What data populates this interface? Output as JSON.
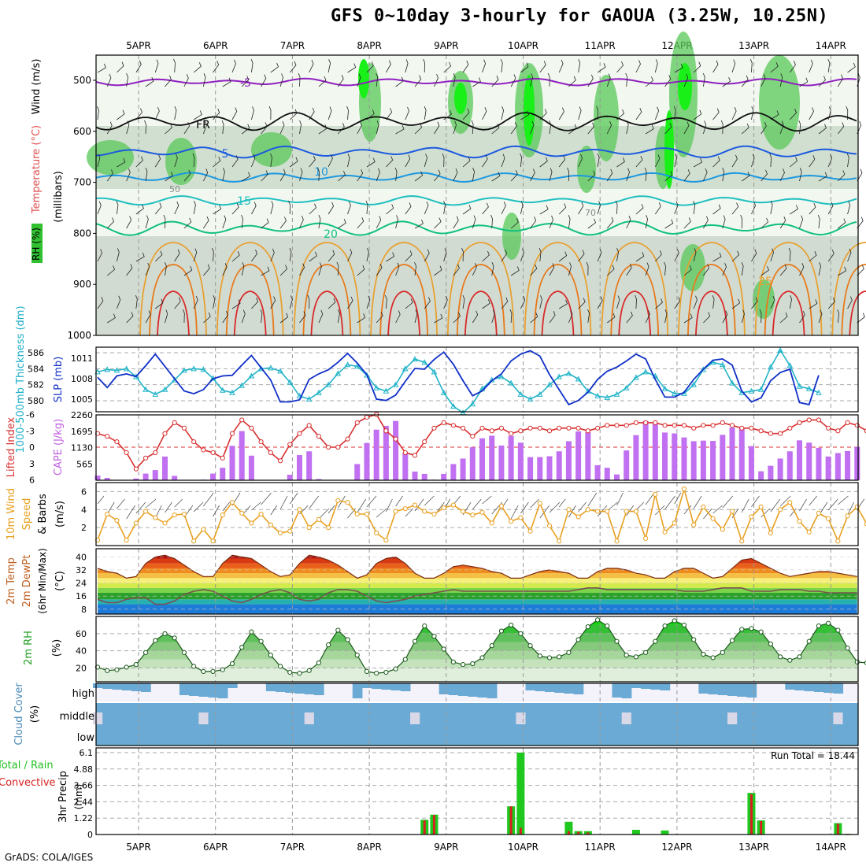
{
  "title": "GFS 0~10day 3-hourly for GAOUA (3.25W, 10.25N)",
  "footer": "GrADS: COLA/IGES",
  "days": [
    "5APR",
    "6APR",
    "7APR",
    "8APR",
    "9APR",
    "10APR",
    "11APR",
    "12APR",
    "13APR",
    "14APR"
  ],
  "chart_data": [
    {
      "type": "heatmap",
      "panel": "upper-air",
      "ylabel": [
        "RH (%)",
        "Temperature (°C)",
        "Wind (m/s)"
      ],
      "yunit": "(millibars)",
      "yticks": [
        500,
        600,
        700,
        800,
        900,
        1000
      ],
      "ylim": [
        1000,
        450
      ],
      "isotherm_labels": [
        "-5",
        "FR",
        "5",
        "10",
        "15",
        "20",
        "25"
      ],
      "rh_labels": [
        "50",
        "70"
      ]
    },
    {
      "type": "line",
      "panel": "thickness-slp",
      "ylabel_left": "1000-500mb Thickness (dm)",
      "ylabel_right": "SLP (mb)",
      "yticks_left": [
        580,
        582,
        584,
        586
      ],
      "yticks_right": [
        1005,
        1008,
        1011
      ],
      "series": [
        {
          "name": "Thickness",
          "color": "#22b4c8",
          "values": [
            583.6,
            583.9,
            583.8,
            584.0,
            583.0,
            581.4,
            580.8,
            581.4,
            582.6,
            583.8,
            584.0,
            583.9,
            582.8,
            581.3,
            581.0,
            581.9,
            583.1,
            584.0,
            584.1,
            583.7,
            582.3,
            580.6,
            580.2,
            581.0,
            582.0,
            583.4,
            584.5,
            584.3,
            583.2,
            581.6,
            581.2,
            582.0,
            584.0,
            585.2,
            584.8,
            583.6,
            581.0,
            579.3,
            578.5,
            579.6,
            581.5,
            582.6,
            583.0,
            582.2,
            580.8,
            580.2,
            580.8,
            582.0,
            583.0,
            583.4,
            582.7,
            581.2,
            580.6,
            580.4,
            580.8,
            581.6,
            582.9,
            583.6,
            583.1,
            581.5,
            580.9,
            580.9,
            582.0,
            583.9,
            584.8,
            584.5,
            582.2,
            581.0,
            581.2,
            581.4,
            584.2,
            586.3,
            584.4,
            581.8,
            581.5,
            581.0
          ]
        },
        {
          "name": "SLP",
          "color": "#1030c8",
          "values": [
            1008.2,
            1006.7,
            1008.4,
            1008.7,
            1008.3,
            1009.9,
            1011.6,
            1009.8,
            1008.0,
            1006.2,
            1005.8,
            1006.4,
            1008.0,
            1008.4,
            1008.5,
            1010.0,
            1011.4,
            1009.6,
            1007.8,
            1004.6,
            1004.6,
            1004.9,
            1007.9,
            1008.7,
            1009.3,
            1010.4,
            1011.7,
            1010.3,
            1008.6,
            1005.0,
            1004.8,
            1005.6,
            1007.6,
            1009.5,
            1009.4,
            1010.8,
            1011.9,
            1010.1,
            1007.7,
            1005.5,
            1006.2,
            1007.7,
            1008.7,
            1010.6,
            1011.6,
            1012.1,
            1011.3,
            1008.6,
            1006.4,
            1004.2,
            1004.8,
            1006.0,
            1007.9,
            1009.1,
            1009.7,
            1010.6,
            1011.6,
            1010.9,
            1007.9,
            1005.3,
            1005.3,
            1006.0,
            1007.9,
            1009.4,
            1010.7,
            1010.9,
            1010.0,
            1006.2,
            1004.6,
            1005.2,
            1007.7,
            1008.9,
            1009.4,
            1004.5,
            1004.2,
            1008.5
          ]
        }
      ]
    },
    {
      "type": "bar",
      "panel": "cape-li",
      "ylabel_left": "Lifted Index",
      "ylabel_right": "CAPE (J/kg)",
      "yticks_left": [
        -6,
        -3,
        0,
        3,
        6
      ],
      "yticks_right": [
        565,
        1130,
        1695,
        2260
      ],
      "series": [
        {
          "name": "CAPE",
          "color": "#c070f0",
          "values": [
            160,
            80,
            0,
            0,
            60,
            230,
            350,
            820,
            150,
            0,
            0,
            20,
            230,
            430,
            1190,
            1700,
            850,
            0,
            0,
            0,
            190,
            870,
            1000,
            40,
            0,
            0,
            0,
            560,
            1290,
            1750,
            1880,
            2050,
            940,
            300,
            220,
            20,
            220,
            560,
            750,
            1140,
            1450,
            1540,
            1200,
            1530,
            1300,
            800,
            800,
            830,
            1000,
            1350,
            1690,
            1660,
            520,
            430,
            200,
            1030,
            1560,
            2050,
            1950,
            1650,
            1620,
            1480,
            1350,
            1370,
            1360,
            1570,
            1820,
            1790,
            1180,
            310,
            500,
            750,
            1000,
            1380,
            1300,
            1120,
            820,
            940,
            1010,
            1150
          ]
        },
        {
          "name": "LI",
          "color": "#d83030",
          "values": [
            -2.5,
            -2.0,
            -1.0,
            1.0,
            4.0,
            2.0,
            1.0,
            -2.5,
            -4.5,
            -3.5,
            -1.0,
            0.5,
            1.0,
            2.0,
            -2.5,
            -5.0,
            -3.5,
            -1.0,
            1.0,
            2.5,
            -0.5,
            -2.5,
            -4.0,
            -2.0,
            0.0,
            0.0,
            -1.5,
            -4.5,
            -5.5,
            -6.0,
            -3.0,
            -1.5,
            1.0,
            1.5,
            -1.0,
            -3.5,
            -4.5,
            -4.0,
            -3.5,
            -2.0,
            -3.5,
            -3.0,
            -3.5,
            -2.5,
            -3.0,
            -3.5,
            -3.5,
            -3.0,
            -3.5,
            -3.5,
            -3.5,
            -3.0,
            -3.5,
            -4.0,
            -4.0,
            -4.0,
            -4.5,
            -4.5,
            -4.5,
            -4.0,
            -4.0,
            -4.0,
            -3.5,
            -4.0,
            -4.0,
            -4.5,
            -4.0,
            -3.5,
            -3.5,
            -3.0,
            -2.5,
            -2.5,
            -3.5,
            -4.5,
            -5.0,
            -5.0,
            -3.5,
            -3.0,
            -4.5,
            -4.0,
            -3.0
          ]
        }
      ]
    },
    {
      "type": "line",
      "panel": "wind10m",
      "ylabel": [
        "10m Wind",
        "Speed",
        "& Barbs",
        "(m/s)"
      ],
      "yticks": [
        2,
        4,
        6
      ],
      "series": [
        {
          "name": "Speed",
          "color": "#e8a020",
          "values": [
            0.6,
            3.5,
            2.8,
            0.6,
            2.5,
            3.8,
            3.1,
            2.5,
            3.4,
            3.5,
            0.5,
            1.8,
            0.5,
            3.4,
            4.8,
            3.6,
            2.5,
            3.5,
            2.3,
            1.4,
            1.6,
            4.0,
            2.0,
            2.9,
            2.0,
            5.0,
            4.8,
            3.5,
            3.5,
            1.4,
            0.6,
            3.8,
            4.1,
            4.5,
            3.8,
            3.5,
            4.2,
            4.5,
            3.8,
            3.4,
            3.7,
            2.5,
            4.4,
            2.7,
            3.1,
            1.6,
            4.7,
            2.2,
            0.5,
            4.0,
            3.2,
            4.0,
            3.8,
            3.8,
            0.5,
            3.8,
            3.8,
            0.8,
            5.7,
            1.5,
            2.5,
            6.3,
            2.3,
            4.3,
            3.0,
            1.8,
            3.8,
            0.5,
            3.2,
            4.3,
            1.4,
            4.0,
            4.8,
            2.7,
            1.5,
            3.6,
            3.0,
            0.5,
            3.3,
            4.3,
            2.4,
            1.2,
            3.3
          ]
        }
      ]
    },
    {
      "type": "area",
      "panel": "temp-dewpt",
      "ylabel": [
        "2m Temp",
        "2m DewPt",
        "(6hr Min/Max)",
        "(°C)"
      ],
      "yticks": [
        8,
        16,
        24,
        32,
        40
      ],
      "series": [
        {
          "name": "Temp",
          "color": "#7a2a10",
          "values": [
            33,
            31,
            30,
            27,
            28,
            36,
            40,
            41,
            39,
            35,
            31,
            28,
            28,
            36,
            41,
            40,
            39,
            35,
            31,
            28,
            29,
            36,
            41,
            40,
            38,
            35,
            31,
            27,
            29,
            36,
            39,
            40,
            36,
            30,
            27,
            27,
            30,
            34,
            35,
            34,
            33,
            31,
            30,
            27,
            27,
            29,
            31,
            32,
            31,
            30,
            27,
            27,
            31,
            33,
            33,
            32,
            30,
            29,
            27,
            27,
            31,
            33,
            33,
            30,
            27,
            28,
            33,
            38,
            39,
            36,
            33,
            30,
            28,
            29,
            30,
            31,
            31,
            30,
            29,
            28
          ]
        },
        {
          "name": "DewPt",
          "color": "#7a5050",
          "values": [
            14,
            12,
            12,
            14,
            15,
            15,
            11,
            11,
            13,
            17,
            19,
            20,
            19,
            16,
            13,
            12,
            14,
            17,
            19,
            20,
            18,
            14,
            13,
            14,
            18,
            20,
            20,
            19,
            16,
            13,
            12,
            13,
            14,
            16,
            17,
            18,
            19,
            20,
            19,
            19,
            19,
            19,
            19,
            19,
            19,
            19,
            19,
            19,
            19,
            19,
            20,
            21,
            21,
            20,
            20,
            20,
            20,
            20,
            20,
            20,
            20,
            19,
            19,
            19,
            20,
            21,
            21,
            21,
            19,
            19,
            19,
            20,
            20,
            20,
            19,
            19,
            18,
            18,
            18,
            18
          ]
        }
      ]
    },
    {
      "type": "area",
      "panel": "rh2m",
      "ylabel": [
        "2m RH",
        "(%)"
      ],
      "yticks": [
        20,
        40,
        60
      ],
      "series": [
        {
          "name": "RH",
          "color": "#1a5a1a",
          "values": [
            21,
            17,
            18,
            21,
            24,
            38,
            52,
            60,
            55,
            38,
            22,
            16,
            16,
            18,
            25,
            44,
            62,
            51,
            35,
            22,
            15,
            14,
            17,
            26,
            47,
            64,
            53,
            35,
            16,
            14,
            15,
            19,
            30,
            51,
            69,
            57,
            42,
            27,
            24,
            25,
            32,
            46,
            63,
            70,
            60,
            46,
            34,
            32,
            33,
            38,
            53,
            68,
            76,
            69,
            51,
            35,
            33,
            38,
            51,
            69,
            75,
            70,
            53,
            36,
            32,
            38,
            52,
            65,
            66,
            62,
            48,
            33,
            29,
            33,
            51,
            69,
            72,
            64,
            43,
            27,
            26,
            36,
            54,
            68
          ]
        }
      ]
    },
    {
      "type": "heatmap",
      "panel": "cloud",
      "ylabel": [
        "Cloud Cover",
        "(%)"
      ],
      "levels": [
        "high",
        "middle",
        "low"
      ]
    },
    {
      "type": "bar",
      "panel": "precip",
      "ylabel": [
        "3hr Precip",
        "(mm)"
      ],
      "side_labels": [
        "Total / Rain",
        "Convective"
      ],
      "yticks": [
        0,
        1.22,
        2.44,
        3.66,
        4.88,
        6.1
      ],
      "annotation": "Run Total = 18.44",
      "series": [
        {
          "name": "Total",
          "color": "#1ec81e",
          "bars": [
            {
              "i": 34,
              "v": 1.1
            },
            {
              "i": 35,
              "v": 1.48
            },
            {
              "i": 43,
              "v": 2.1
            },
            {
              "i": 44,
              "v": 6.1
            },
            {
              "i": 49,
              "v": 0.95
            },
            {
              "i": 50,
              "v": 0.25
            },
            {
              "i": 51,
              "v": 0.25
            },
            {
              "i": 56,
              "v": 0.35
            },
            {
              "i": 59,
              "v": 0.3
            },
            {
              "i": 68,
              "v": 3.1
            },
            {
              "i": 69,
              "v": 1.05
            },
            {
              "i": 77,
              "v": 0.85
            },
            {
              "i": 78,
              "v": 0.05
            }
          ]
        },
        {
          "name": "Convective",
          "color": "#d82020",
          "bars": [
            {
              "i": 34,
              "v": 1.05
            },
            {
              "i": 35,
              "v": 1.45
            },
            {
              "i": 43,
              "v": 2.1
            },
            {
              "i": 44,
              "v": 0.5
            },
            {
              "i": 49,
              "v": 0.25
            },
            {
              "i": 50,
              "v": 0.2
            },
            {
              "i": 51,
              "v": 0.15
            },
            {
              "i": 68,
              "v": 3.0
            },
            {
              "i": 69,
              "v": 1.0
            },
            {
              "i": 77,
              "v": 0.8
            },
            {
              "i": 78,
              "v": 0.05
            }
          ]
        }
      ]
    }
  ]
}
